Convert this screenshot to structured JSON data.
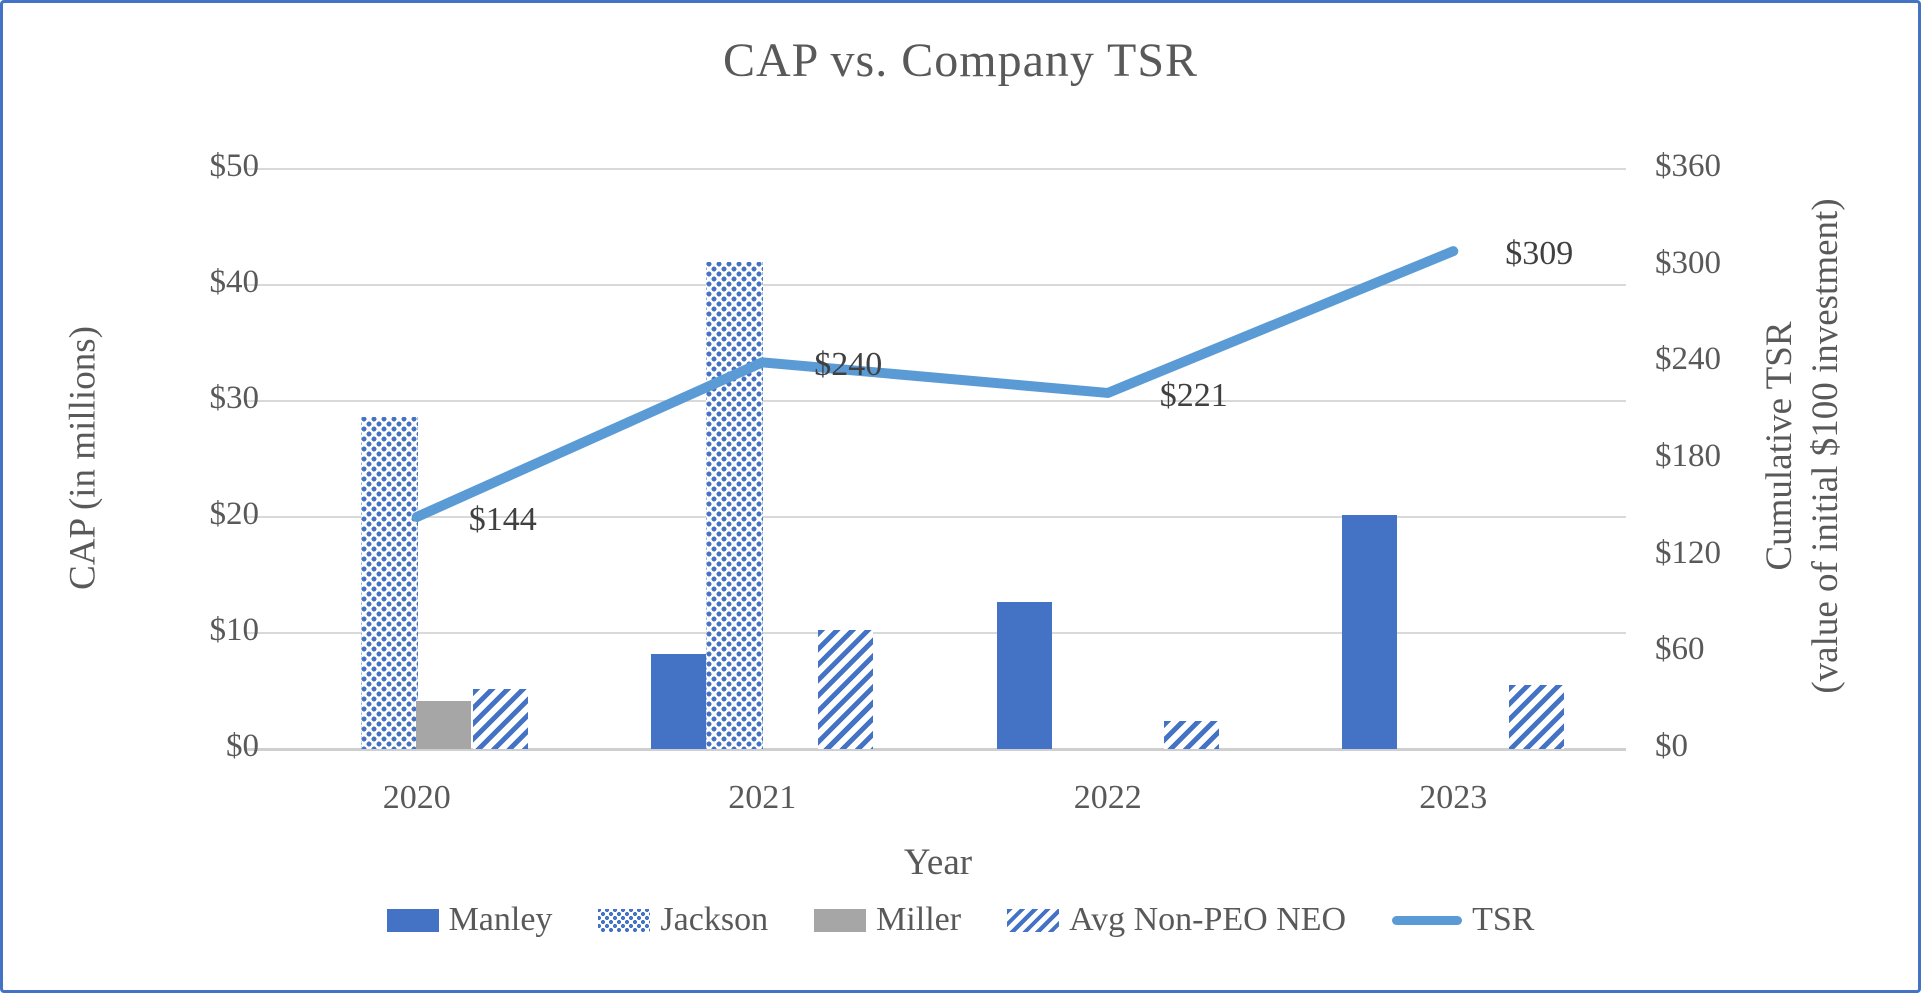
{
  "title": "CAP vs. Company TSR",
  "axes": {
    "left": {
      "title": "CAP (in millions)"
    },
    "right": {
      "title_line1": "Cumulative TSR",
      "title_line2": "(value of initial $100 investment)"
    },
    "x": {
      "title": "Year"
    }
  },
  "chart_data": {
    "type": "combo-bar-line",
    "title": "CAP vs. Company TSR",
    "categories": [
      "2020",
      "2021",
      "2022",
      "2023"
    ],
    "bar_series": [
      {
        "name": "Manley",
        "style": "solid-blue",
        "values": [
          0,
          8.2,
          12.7,
          20.2
        ]
      },
      {
        "name": "Jackson",
        "style": "dotted-blue",
        "values": [
          28.6,
          42.0,
          0,
          0
        ]
      },
      {
        "name": "Miller",
        "style": "solid-gray",
        "values": [
          4.1,
          0,
          0,
          0
        ]
      },
      {
        "name": "Avg Non-PEO NEO",
        "style": "striped-blue",
        "values": [
          5.2,
          10.3,
          2.4,
          5.5
        ]
      }
    ],
    "line_series": {
      "name": "TSR",
      "axis": "right",
      "values": [
        144,
        240,
        221,
        309
      ],
      "point_labels": [
        "$144",
        "$240",
        "$221",
        "$309"
      ]
    },
    "left_axis": {
      "label": "CAP (in millions)",
      "min": 0,
      "max": 50,
      "step": 10,
      "tick_labels": [
        "$0",
        "$10",
        "$20",
        "$30",
        "$40",
        "$50"
      ]
    },
    "right_axis": {
      "label": "Cumulative TSR (value of initial $100 investment)",
      "min": 0,
      "max": 360,
      "step": 60,
      "tick_labels": [
        "$0",
        "$60",
        "$120",
        "$180",
        "$240",
        "$300",
        "$360"
      ]
    },
    "xlabel": "Year",
    "grid": true,
    "legend_position": "bottom"
  },
  "legend": {
    "items": [
      {
        "label": "Manley",
        "marker": "solid-blue"
      },
      {
        "label": "Jackson",
        "marker": "dotted-blue"
      },
      {
        "label": "Miller",
        "marker": "solid-gray"
      },
      {
        "label": "Avg Non-PEO NEO",
        "marker": "striped-blue"
      },
      {
        "label": "TSR",
        "marker": "line"
      }
    ]
  },
  "colors": {
    "accent_blue": "#4472C4",
    "line_blue": "#5B9BD5",
    "gray": "#A6A6A6",
    "gridline": "#D9D9D9",
    "baseline": "#CFCFCF",
    "text": "#595959",
    "data_label_text": "#404040",
    "frame_border": "#4472C4"
  }
}
